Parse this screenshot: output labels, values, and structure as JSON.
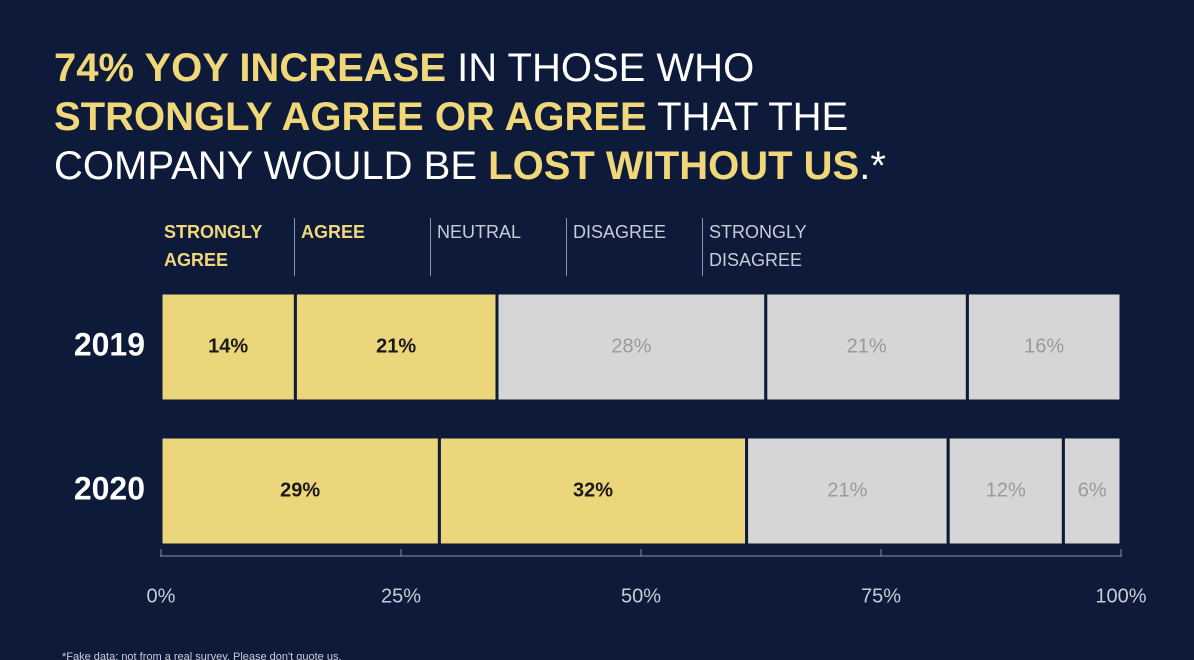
{
  "chart_data": {
    "type": "stacked-bar-horizontal",
    "title_lines": [
      [
        {
          "text": "74% YOY INCREASE",
          "highlight": true
        },
        {
          "text": " IN THOSE WHO",
          "highlight": false
        }
      ],
      [
        {
          "text": "STRONGLY AGREE OR AGREE",
          "highlight": true
        },
        {
          "text": " THAT THE",
          "highlight": false
        }
      ],
      [
        {
          "text": "COMPANY WOULD BE ",
          "highlight": false
        },
        {
          "text": "LOST WITHOUT US",
          "highlight": true
        },
        {
          "text": ".*",
          "highlight": false
        }
      ]
    ],
    "categories": [
      "2019",
      "2020"
    ],
    "series": [
      {
        "name": "STRONGLY AGREE",
        "color": "#ecd67c",
        "label_color": "#1a1a1a",
        "values": [
          14,
          29
        ],
        "value_labels": [
          "14%",
          "29%"
        ]
      },
      {
        "name": "AGREE",
        "color": "#ecd67c",
        "label_color": "#1a1a1a",
        "values": [
          21,
          32
        ],
        "value_labels": [
          "21%",
          "32%"
        ]
      },
      {
        "name": "NEUTRAL",
        "color": "#d6d6d6",
        "label_color": "#9a9a9a",
        "values": [
          28,
          21
        ],
        "value_labels": [
          "28%",
          "21%"
        ]
      },
      {
        "name": "DISAGREE",
        "color": "#d6d6d6",
        "label_color": "#9a9a9a",
        "values": [
          21,
          12
        ],
        "value_labels": [
          "21%",
          "12%"
        ]
      },
      {
        "name": "STRONGLY DISAGREE",
        "color": "#d6d6d6",
        "label_color": "#9a9a9a",
        "values": [
          16,
          6
        ],
        "value_labels": [
          "16%",
          "6%"
        ]
      }
    ],
    "xlim": [
      0,
      100
    ],
    "xticks": [
      {
        "value": 0,
        "label": "0%"
      },
      {
        "value": 25,
        "label": "25%"
      },
      {
        "value": 50,
        "label": "50%"
      },
      {
        "value": 75,
        "label": "75%"
      },
      {
        "value": 100,
        "label": "100%"
      }
    ],
    "footnote": "*Fake data: not from a real survey. Please don't quote us."
  }
}
